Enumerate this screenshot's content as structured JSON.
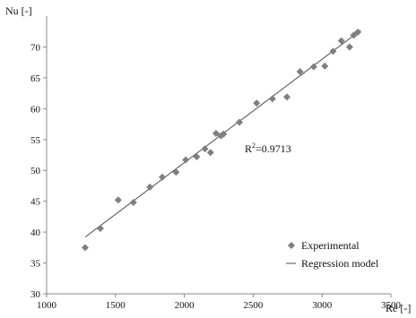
{
  "chart_data": {
    "type": "scatter",
    "xlabel": "Re [-]",
    "ylabel": "Nu [-]",
    "xlim": [
      1000,
      3500
    ],
    "ylim": [
      30,
      75
    ],
    "xticks": [
      "1000",
      "1500",
      "2000",
      "2500",
      "3000",
      "3500"
    ],
    "yticks": [
      "30",
      "35",
      "40",
      "45",
      "50",
      "55",
      "60",
      "65",
      "70"
    ],
    "grid": false,
    "legend_position": "bottom-right",
    "annotation": {
      "prefix": "R",
      "sup": "2",
      "value": "=0.9713"
    },
    "series": [
      {
        "name": "Experimental",
        "marker": "diamond",
        "color": "#7f7f7f",
        "points": [
          [
            1280,
            37.5
          ],
          [
            1390,
            40.6
          ],
          [
            1520,
            45.2
          ],
          [
            1630,
            44.8
          ],
          [
            1750,
            47.3
          ],
          [
            1840,
            48.9
          ],
          [
            1940,
            49.7
          ],
          [
            2010,
            51.7
          ],
          [
            2090,
            52.2
          ],
          [
            2150,
            53.5
          ],
          [
            2190,
            52.9
          ],
          [
            2230,
            56.0
          ],
          [
            2265,
            55.6
          ],
          [
            2285,
            55.9
          ],
          [
            2400,
            57.8
          ],
          [
            2525,
            60.9
          ],
          [
            2640,
            61.6
          ],
          [
            2745,
            61.9
          ],
          [
            2840,
            66.0
          ],
          [
            2940,
            66.8
          ],
          [
            3020,
            66.9
          ],
          [
            3080,
            69.3
          ],
          [
            3140,
            71.0
          ],
          [
            3200,
            70.0
          ],
          [
            3230,
            71.9
          ],
          [
            3260,
            72.4
          ]
        ]
      },
      {
        "name": "Regression model",
        "type": "line",
        "color": "#4d4d4d",
        "x": [
          1280,
          3280
        ],
        "y": [
          39.2,
          72.7
        ]
      }
    ]
  }
}
